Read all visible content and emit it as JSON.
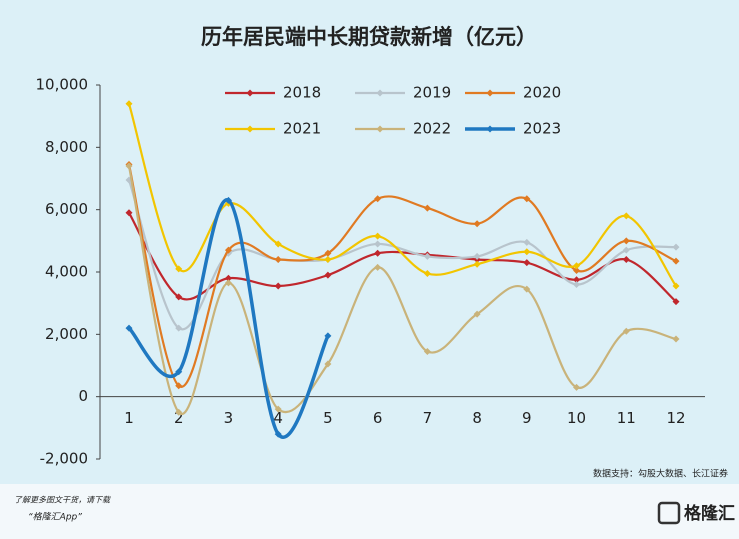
{
  "chart_data": {
    "type": "line",
    "title": "历年居民端中长期贷款新增（亿元）",
    "categories": [
      "1",
      "2",
      "3",
      "4",
      "5",
      "6",
      "7",
      "8",
      "9",
      "10",
      "11",
      "12"
    ],
    "series": [
      {
        "name": "2018",
        "color": "#c0272d",
        "values": [
          5900,
          3200,
          3800,
          3550,
          3900,
          4600,
          4550,
          4400,
          4300,
          3750,
          4400,
          3050
        ]
      },
      {
        "name": "2019",
        "color": "#b8c4cc",
        "values": [
          6950,
          2200,
          4600,
          4400,
          4400,
          4900,
          4500,
          4500,
          4950,
          3600,
          4700,
          4800
        ]
      },
      {
        "name": "2020",
        "color": "#e07a22",
        "values": [
          7450,
          350,
          4700,
          4400,
          4600,
          6350,
          6050,
          5550,
          6350,
          4050,
          5000,
          4350
        ]
      },
      {
        "name": "2021",
        "color": "#f2c500",
        "values": [
          9400,
          4100,
          6200,
          4900,
          4400,
          5150,
          3950,
          4250,
          4650,
          4200,
          5800,
          3550
        ]
      },
      {
        "name": "2022",
        "color": "#c9b37a",
        "values": [
          7400,
          -500,
          3650,
          -400,
          1050,
          4150,
          1450,
          2650,
          3450,
          300,
          2100,
          1850
        ]
      },
      {
        "name": "2023",
        "color": "#1f78c1",
        "values": [
          2200,
          800,
          6300,
          -1200,
          1950,
          null,
          null,
          null,
          null,
          null,
          null,
          null
        ]
      }
    ],
    "ylim": [
      -2000,
      10000
    ],
    "yticks": [
      {
        "value": -2000,
        "label": "-2,000"
      },
      0,
      {
        "value": 2000,
        "label": "2,000"
      },
      {
        "value": 4000,
        "label": "4,000"
      },
      {
        "value": 6000,
        "label": "6,000"
      },
      {
        "value": 8000,
        "label": "8,000"
      },
      {
        "value": 10000,
        "label": "10,000"
      }
    ],
    "source": "数据支持：勾股大数据、长江证券"
  },
  "footer": {
    "line1": "了解更多图文干货，请下载",
    "line2": "“格隆汇App”",
    "logo": "格隆汇"
  }
}
